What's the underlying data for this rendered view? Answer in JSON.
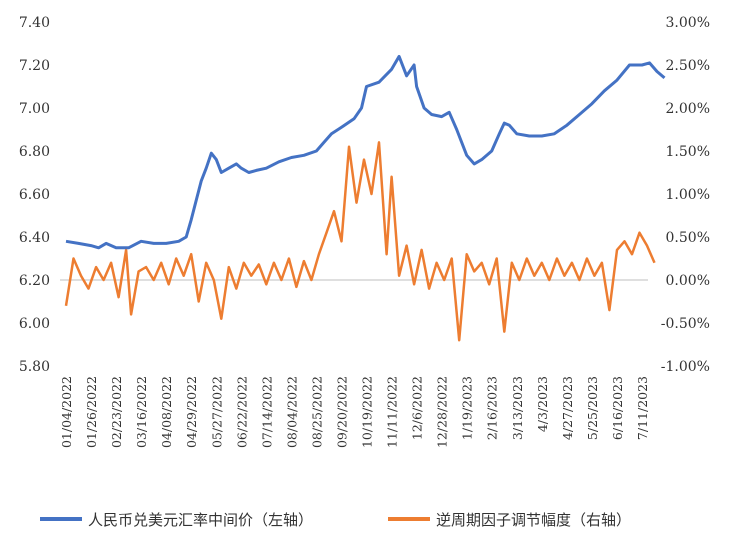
{
  "chart_data": {
    "type": "line",
    "title": "",
    "xlabel": "",
    "y_left": {
      "label": "",
      "range": [
        5.8,
        7.4
      ],
      "ticks": [
        "5.80",
        "6.00",
        "6.20",
        "6.40",
        "6.60",
        "6.80",
        "7.00",
        "7.20",
        "7.40"
      ]
    },
    "y_right": {
      "label": "",
      "range": [
        -1.0,
        3.0
      ],
      "ticks": [
        "-1.00%",
        "-0.50%",
        "0.00%",
        "0.50%",
        "1.00%",
        "1.50%",
        "2.00%",
        "2.50%",
        "3.00%"
      ]
    },
    "x_tick_labels": [
      "01/04/2022",
      "01/26/2022",
      "02/23/2022",
      "03/16/2022",
      "04/08/2022",
      "04/29/2022",
      "05/27/2022",
      "06/22/2022",
      "07/14/2022",
      "08/04/2022",
      "08/25/2022",
      "09/20/2022",
      "10/19/2022",
      "11/11/2022",
      "12/6/2022",
      "12/28/2022",
      "1/19/2023",
      "2/16/2023",
      "3/13/2023",
      "4/3/2023",
      "4/27/2023",
      "5/25/2023",
      "6/16/2023",
      "7/11/2023"
    ],
    "legend_position": "bottom",
    "grid": false,
    "series": [
      {
        "name": "人民币兑美元汇率中间价（左轴）",
        "axis": "left",
        "color": "#4472C4",
        "points": [
          [
            0,
            6.38
          ],
          [
            0.5,
            6.37
          ],
          [
            1,
            6.36
          ],
          [
            1.3,
            6.35
          ],
          [
            1.6,
            6.37
          ],
          [
            2,
            6.35
          ],
          [
            2.5,
            6.35
          ],
          [
            3,
            6.38
          ],
          [
            3.5,
            6.37
          ],
          [
            4,
            6.37
          ],
          [
            4.5,
            6.38
          ],
          [
            4.8,
            6.4
          ],
          [
            5,
            6.48
          ],
          [
            5.2,
            6.57
          ],
          [
            5.4,
            6.66
          ],
          [
            5.6,
            6.72
          ],
          [
            5.8,
            6.79
          ],
          [
            6.0,
            6.76
          ],
          [
            6.2,
            6.7
          ],
          [
            6.5,
            6.72
          ],
          [
            6.8,
            6.74
          ],
          [
            7,
            6.72
          ],
          [
            7.3,
            6.7
          ],
          [
            7.6,
            6.71
          ],
          [
            8,
            6.72
          ],
          [
            8.5,
            6.75
          ],
          [
            9,
            6.77
          ],
          [
            9.5,
            6.78
          ],
          [
            10,
            6.8
          ],
          [
            10.3,
            6.84
          ],
          [
            10.6,
            6.88
          ],
          [
            11,
            6.91
          ],
          [
            11.5,
            6.95
          ],
          [
            11.8,
            7.0
          ],
          [
            12,
            7.1
          ],
          [
            12.5,
            7.12
          ],
          [
            13,
            7.18
          ],
          [
            13.3,
            7.24
          ],
          [
            13.6,
            7.15
          ],
          [
            13.9,
            7.2
          ],
          [
            14,
            7.1
          ],
          [
            14.3,
            7.0
          ],
          [
            14.6,
            6.97
          ],
          [
            15,
            6.96
          ],
          [
            15.3,
            6.98
          ],
          [
            15.6,
            6.9
          ],
          [
            16,
            6.78
          ],
          [
            16.3,
            6.74
          ],
          [
            16.6,
            6.76
          ],
          [
            17,
            6.8
          ],
          [
            17.3,
            6.88
          ],
          [
            17.5,
            6.93
          ],
          [
            17.7,
            6.92
          ],
          [
            18,
            6.88
          ],
          [
            18.5,
            6.87
          ],
          [
            19,
            6.87
          ],
          [
            19.5,
            6.88
          ],
          [
            20,
            6.92
          ],
          [
            20.5,
            6.97
          ],
          [
            21,
            7.02
          ],
          [
            21.5,
            7.08
          ],
          [
            22,
            7.13
          ],
          [
            22.5,
            7.2
          ],
          [
            23,
            7.2
          ],
          [
            23.3,
            7.21
          ],
          [
            23.6,
            7.17
          ],
          [
            23.9,
            7.14
          ]
        ]
      },
      {
        "name": "逆周期因子调节幅度（右轴）",
        "axis": "right",
        "color": "#ED7D31",
        "points": [
          [
            0,
            -0.3
          ],
          [
            0.3,
            0.25
          ],
          [
            0.6,
            0.05
          ],
          [
            0.9,
            -0.1
          ],
          [
            1.2,
            0.15
          ],
          [
            1.5,
            0.0
          ],
          [
            1.8,
            0.2
          ],
          [
            2.1,
            -0.2
          ],
          [
            2.4,
            0.35
          ],
          [
            2.6,
            -0.4
          ],
          [
            2.9,
            0.1
          ],
          [
            3.2,
            0.15
          ],
          [
            3.5,
            0.0
          ],
          [
            3.8,
            0.2
          ],
          [
            4.1,
            -0.05
          ],
          [
            4.4,
            0.25
          ],
          [
            4.7,
            0.05
          ],
          [
            5.0,
            0.3
          ],
          [
            5.3,
            -0.25
          ],
          [
            5.6,
            0.2
          ],
          [
            5.9,
            0.0
          ],
          [
            6.2,
            -0.45
          ],
          [
            6.5,
            0.15
          ],
          [
            6.8,
            -0.1
          ],
          [
            7.1,
            0.2
          ],
          [
            7.4,
            0.05
          ],
          [
            7.7,
            0.18
          ],
          [
            8.0,
            -0.05
          ],
          [
            8.3,
            0.2
          ],
          [
            8.6,
            0.0
          ],
          [
            8.9,
            0.25
          ],
          [
            9.2,
            -0.08
          ],
          [
            9.5,
            0.22
          ],
          [
            9.8,
            0.0
          ],
          [
            10.1,
            0.3
          ],
          [
            10.4,
            0.55
          ],
          [
            10.7,
            0.8
          ],
          [
            11.0,
            0.45
          ],
          [
            11.3,
            1.55
          ],
          [
            11.6,
            0.9
          ],
          [
            11.9,
            1.4
          ],
          [
            12.2,
            1.0
          ],
          [
            12.5,
            1.6
          ],
          [
            12.8,
            0.3
          ],
          [
            13.0,
            1.2
          ],
          [
            13.3,
            0.05
          ],
          [
            13.6,
            0.4
          ],
          [
            13.9,
            -0.05
          ],
          [
            14.2,
            0.35
          ],
          [
            14.5,
            -0.1
          ],
          [
            14.8,
            0.2
          ],
          [
            15.1,
            0.0
          ],
          [
            15.4,
            0.25
          ],
          [
            15.7,
            -0.7
          ],
          [
            16.0,
            0.3
          ],
          [
            16.3,
            0.1
          ],
          [
            16.6,
            0.2
          ],
          [
            16.9,
            -0.05
          ],
          [
            17.2,
            0.25
          ],
          [
            17.5,
            -0.6
          ],
          [
            17.8,
            0.2
          ],
          [
            18.1,
            0.0
          ],
          [
            18.4,
            0.25
          ],
          [
            18.7,
            0.05
          ],
          [
            19.0,
            0.2
          ],
          [
            19.3,
            0.0
          ],
          [
            19.6,
            0.25
          ],
          [
            19.9,
            0.05
          ],
          [
            20.2,
            0.2
          ],
          [
            20.5,
            0.0
          ],
          [
            20.8,
            0.25
          ],
          [
            21.1,
            0.05
          ],
          [
            21.4,
            0.2
          ],
          [
            21.7,
            -0.35
          ],
          [
            22.0,
            0.35
          ],
          [
            22.3,
            0.45
          ],
          [
            22.6,
            0.3
          ],
          [
            22.9,
            0.55
          ],
          [
            23.2,
            0.4
          ],
          [
            23.5,
            0.2
          ]
        ]
      }
    ]
  }
}
